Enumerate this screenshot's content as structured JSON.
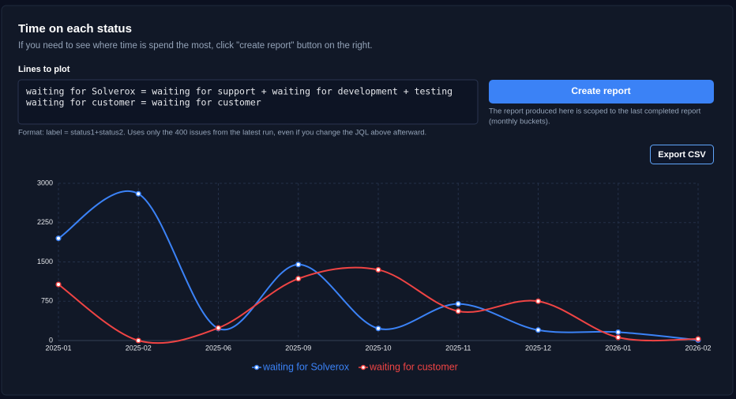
{
  "header": {
    "title": "Time on each status",
    "subtitle": "If you need to see where time is spend the most, click \"create report\" button on the right."
  },
  "form": {
    "label": "Lines to plot",
    "lines": [
      "waiting for Solverox = waiting for support + waiting for development + testing",
      "waiting for customer = waiting for customer"
    ],
    "note": "Format: label = status1+status2. Uses only the 400 issues from the latest run, even if you change the JQL above afterward."
  },
  "actions": {
    "create_report": "Create report",
    "scope_note": [
      "The report produced here is scoped to the last completed report",
      "(monthly buckets)."
    ],
    "export_csv": "Export CSV"
  },
  "chart_data": {
    "type": "line",
    "categories": [
      "2025-01",
      "2025-02",
      "2025-06",
      "2025-09",
      "2025-10",
      "2025-11",
      "2025-12",
      "2026-01",
      "2026-02"
    ],
    "series": [
      {
        "name": "waiting for Solverox",
        "color": "#3b82f6",
        "values": [
          1950,
          2800,
          230,
          1450,
          230,
          700,
          200,
          160,
          10
        ]
      },
      {
        "name": "waiting for customer",
        "color": "#ef4444",
        "values": [
          1070,
          0,
          240,
          1180,
          1350,
          560,
          750,
          60,
          30
        ]
      }
    ],
    "ylim": [
      0,
      3000
    ],
    "yticks": [
      0,
      750,
      1500,
      2250,
      3000
    ],
    "grid": true
  }
}
